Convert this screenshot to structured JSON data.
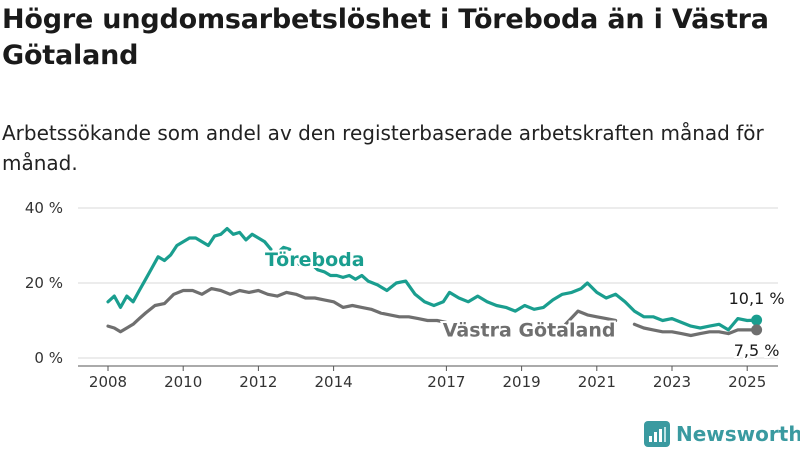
{
  "title": "Högre ungdomsarbetslöshet i Töreboda än i Västra Götaland",
  "subtitle": "Arbetssökande som andel av den registerbaserade arbetskraften månad för månad.",
  "brand": {
    "name": "Newsworthy"
  },
  "chart_data": {
    "type": "line",
    "title": "Högre ungdomsarbetslöshet i Töreboda än i Västra Götaland",
    "subtitle": "Arbetssökande som andel av den registerbaserade arbetskraften månad för månad.",
    "y_unit": "%",
    "ylim": [
      0,
      40
    ],
    "y_ticks": [
      "0 %",
      "20 %",
      "40 %"
    ],
    "x_ticks": [
      "2008",
      "2010",
      "2012",
      "2014",
      "2017",
      "2019",
      "2021",
      "2023",
      "2025"
    ],
    "xlim": [
      "2007-12",
      "2025-07"
    ],
    "grid": "horizontal",
    "series": [
      {
        "name": "Töreboda",
        "color": "#1a9e8f",
        "end_label": "10,1 %",
        "points": [
          [
            "2008-01",
            15
          ],
          [
            "2008-03",
            16.5
          ],
          [
            "2008-05",
            13.5
          ],
          [
            "2008-07",
            16.5
          ],
          [
            "2008-09",
            15
          ],
          [
            "2008-11",
            18
          ],
          [
            "2009-01",
            21
          ],
          [
            "2009-03",
            24
          ],
          [
            "2009-05",
            27
          ],
          [
            "2009-07",
            26
          ],
          [
            "2009-09",
            27.5
          ],
          [
            "2009-11",
            30
          ],
          [
            "2010-01",
            31
          ],
          [
            "2010-03",
            32
          ],
          [
            "2010-05",
            32
          ],
          [
            "2010-07",
            31
          ],
          [
            "2010-09",
            30
          ],
          [
            "2010-11",
            32.5
          ],
          [
            "2011-01",
            33
          ],
          [
            "2011-03",
            34.5
          ],
          [
            "2011-05",
            33
          ],
          [
            "2011-07",
            33.5
          ],
          [
            "2011-09",
            31.5
          ],
          [
            "2011-11",
            33
          ],
          [
            "2012-01",
            32
          ],
          [
            "2012-03",
            31
          ],
          [
            "2012-05",
            29
          ],
          [
            null,
            null
          ],
          [
            "2012-07",
            28
          ],
          [
            "2012-09",
            29.5
          ],
          [
            "2012-11",
            29
          ],
          [
            null,
            null
          ],
          [
            "2013-02",
            25
          ],
          [
            "2013-04",
            26
          ],
          [
            "2013-06",
            25
          ],
          [
            "2013-08",
            23.5
          ],
          [
            "2013-10",
            23
          ],
          [
            "2013-12",
            22
          ],
          [
            "2014-02",
            22
          ],
          [
            "2014-04",
            21.5
          ],
          [
            "2014-06",
            22
          ],
          [
            "2014-08",
            21
          ],
          [
            "2014-10",
            22
          ],
          [
            "2014-12",
            20.5
          ],
          [
            "2015-03",
            19.5
          ],
          [
            "2015-06",
            18
          ],
          [
            "2015-09",
            20
          ],
          [
            "2015-12",
            20.5
          ],
          [
            "2016-03",
            17
          ],
          [
            "2016-06",
            15
          ],
          [
            "2016-09",
            14
          ],
          [
            "2016-12",
            15
          ],
          [
            "2017-02",
            17.5
          ],
          [
            "2017-05",
            16
          ],
          [
            "2017-08",
            15
          ],
          [
            "2017-11",
            16.5
          ],
          [
            "2018-02",
            15
          ],
          [
            "2018-05",
            14
          ],
          [
            "2018-08",
            13.5
          ],
          [
            "2018-11",
            12.5
          ],
          [
            "2019-02",
            14
          ],
          [
            "2019-05",
            13
          ],
          [
            "2019-08",
            13.5
          ],
          [
            "2019-11",
            15.5
          ],
          [
            "2020-02",
            17
          ],
          [
            "2020-05",
            17.5
          ],
          [
            "2020-08",
            18.5
          ],
          [
            "2020-10",
            20
          ],
          [
            "2021-01",
            17.5
          ],
          [
            "2021-04",
            16
          ],
          [
            "2021-07",
            17
          ],
          [
            "2021-10",
            15
          ],
          [
            "2022-01",
            12.5
          ],
          [
            "2022-04",
            11
          ],
          [
            "2022-07",
            11
          ],
          [
            "2022-10",
            10
          ],
          [
            "2023-01",
            10.5
          ],
          [
            "2023-04",
            9.5
          ],
          [
            "2023-07",
            8.5
          ],
          [
            "2023-10",
            8
          ],
          [
            "2024-01",
            8.5
          ],
          [
            "2024-04",
            9
          ],
          [
            "2024-07",
            7.5
          ],
          [
            "2024-10",
            10.5
          ],
          [
            "2025-01",
            10
          ],
          [
            "2025-04",
            10.1
          ]
        ]
      },
      {
        "name": "Västra Götaland",
        "color": "#6f6f6f",
        "end_label": "7,5 %",
        "points": [
          [
            "2008-01",
            8.5
          ],
          [
            "2008-03",
            8
          ],
          [
            "2008-05",
            7
          ],
          [
            "2008-07",
            8
          ],
          [
            "2008-09",
            9
          ],
          [
            "2008-11",
            10.5
          ],
          [
            "2009-01",
            12
          ],
          [
            "2009-04",
            14
          ],
          [
            "2009-07",
            14.5
          ],
          [
            "2009-10",
            17
          ],
          [
            "2010-01",
            18
          ],
          [
            "2010-04",
            18
          ],
          [
            "2010-07",
            17
          ],
          [
            "2010-10",
            18.5
          ],
          [
            "2011-01",
            18
          ],
          [
            "2011-04",
            17
          ],
          [
            "2011-07",
            18
          ],
          [
            "2011-10",
            17.5
          ],
          [
            "2012-01",
            18
          ],
          [
            "2012-04",
            17
          ],
          [
            "2012-07",
            16.5
          ],
          [
            "2012-10",
            17.5
          ],
          [
            "2013-01",
            17
          ],
          [
            "2013-04",
            16
          ],
          [
            "2013-07",
            16
          ],
          [
            "2013-10",
            15.5
          ],
          [
            "2014-01",
            15
          ],
          [
            "2014-04",
            13.5
          ],
          [
            "2014-07",
            14
          ],
          [
            "2014-10",
            13.5
          ],
          [
            "2015-01",
            13
          ],
          [
            "2015-04",
            12
          ],
          [
            "2015-07",
            11.5
          ],
          [
            "2015-10",
            11
          ],
          [
            "2016-01",
            11
          ],
          [
            "2016-04",
            10.5
          ],
          [
            "2016-07",
            10
          ],
          [
            "2016-10",
            10
          ],
          [
            "2017-01",
            9.5
          ],
          [
            null,
            null
          ],
          [
            "2020-03",
            9
          ],
          [
            "2020-07",
            12.5
          ],
          [
            "2020-10",
            11.5
          ],
          [
            "2021-01",
            11
          ],
          [
            "2021-04",
            10.5
          ],
          [
            "2021-07",
            10
          ],
          [
            null,
            null
          ],
          [
            "2022-01",
            9
          ],
          [
            "2022-04",
            8
          ],
          [
            "2022-07",
            7.5
          ],
          [
            "2022-10",
            7
          ],
          [
            "2023-01",
            7
          ],
          [
            "2023-04",
            6.5
          ],
          [
            "2023-07",
            6
          ],
          [
            "2023-10",
            6.5
          ],
          [
            "2024-01",
            7
          ],
          [
            "2024-04",
            7
          ],
          [
            "2024-07",
            6.5
          ],
          [
            "2024-10",
            7.5
          ],
          [
            "2025-01",
            7.5
          ],
          [
            "2025-04",
            7.5
          ]
        ]
      }
    ]
  }
}
